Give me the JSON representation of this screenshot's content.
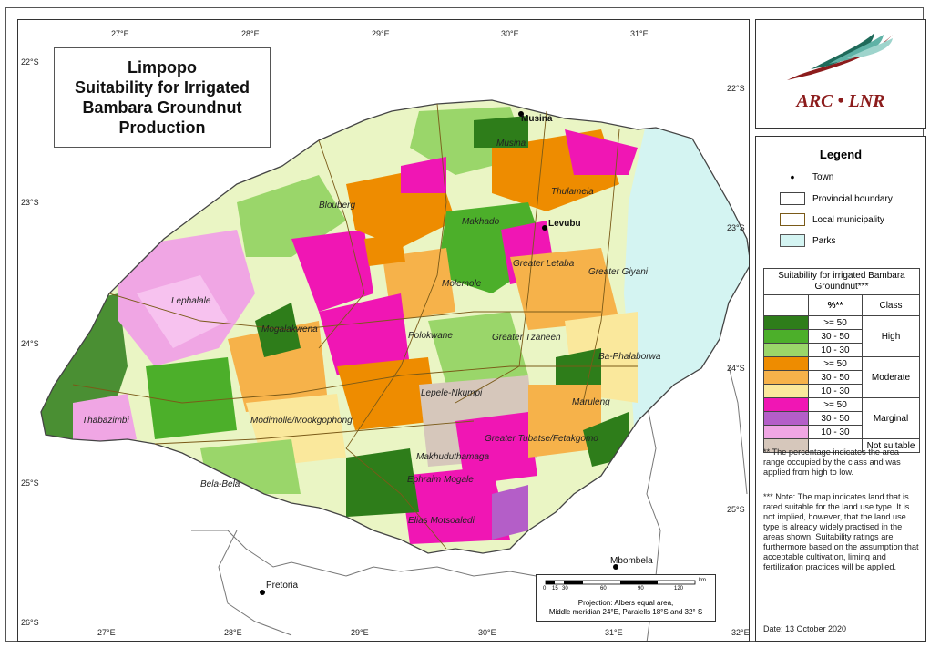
{
  "title": {
    "line1": "Limpopo",
    "line2": "Suitability for Irrigated",
    "line3": "Bambara Groundnut",
    "line4": "Production"
  },
  "ticks": {
    "top": [
      "27°E",
      "28°E",
      "29°E",
      "30°E",
      "31°E"
    ],
    "bottom": [
      "27°E",
      "28°E",
      "29°E",
      "30°E",
      "31°E",
      "32°E"
    ],
    "left": [
      "22°S",
      "23°S",
      "24°S",
      "25°S",
      "26°S"
    ],
    "right": [
      "22°S",
      "23°S",
      "24°S",
      "25°S"
    ]
  },
  "logo": {
    "text": "ARC • LNR"
  },
  "legend": {
    "title": "Legend",
    "town": "Town",
    "provincial_boundary": "Provincial boundary",
    "local_municipality": "Local municipality",
    "parks": "Parks"
  },
  "suitability": {
    "header": "Suitability for irrigated Bambara Groundnut***",
    "col_pct": "%**",
    "col_class": "Class",
    "rows": [
      {
        "pct": ">= 50",
        "color": "#2e7d1a"
      },
      {
        "pct": "30 - 50",
        "color": "#4caf2a"
      },
      {
        "pct": "10 - 30",
        "color": "#9ad66a"
      },
      {
        "pct": ">= 50",
        "color": "#ee8c00"
      },
      {
        "pct": "30 - 50",
        "color": "#f6b24a"
      },
      {
        "pct": "10 - 30",
        "color": "#fae89c"
      },
      {
        "pct": ">= 50",
        "color": "#f016b4"
      },
      {
        "pct": "30 - 50",
        "color": "#b45ec8"
      },
      {
        "pct": "10 - 30",
        "color": "#f0a6e4"
      },
      {
        "pct": "",
        "color": "#d6c7bb"
      }
    ],
    "classes": {
      "high": "High",
      "moderate": "Moderate",
      "marginal": "Marginal",
      "not_suitable": "Not suitable"
    }
  },
  "notes": {
    "note1": "** The percentage indicates the area range occupied by the class and was applied from high to low.",
    "note2": "*** Note: The map indicates land that is rated suitable for the land use type. It is not implied, however, that the land use type is already widely practised in the areas shown. Suitability ratings are furthermore based on the assumption that acceptable cultivation, liming and fertilization practices will be applied."
  },
  "date": "Date: 13 October 2020",
  "scalebar": {
    "labels": [
      "0",
      "15",
      "30",
      "60",
      "90",
      "120"
    ],
    "unit": "km",
    "projection1": "Projection: Albers equal area,",
    "projection2": "Middle meridian 24°E, Paralells 18°S and 32° S"
  },
  "towns": [
    "Musina",
    "Levubu",
    "Pretoria",
    "Mbombela"
  ],
  "municipalities": [
    "Musina",
    "Thulamela",
    "Blouberg",
    "Makhado",
    "Molemole",
    "Greater Letaba",
    "Greater Giyani",
    "Lephalale",
    "Mogalakwena",
    "Polokwane",
    "Greater Tzaneen",
    "Ba-Phalaborwa",
    "Lepele-Nkumpi",
    "Maruleng",
    "Modimolle/Mookgophong",
    "Thabazimbi",
    "Greater Tubatse/Fetakgomo",
    "Makhuduthamaga",
    "Bela-Bela",
    "Ephraim Mogale",
    "Elias Motsoaledi"
  ],
  "colors": {
    "parks": "#d4f4f2",
    "not_suitable": "#d6c7bb",
    "provincial_boundary": "#444444",
    "local_boundary": "#7a5a18"
  }
}
